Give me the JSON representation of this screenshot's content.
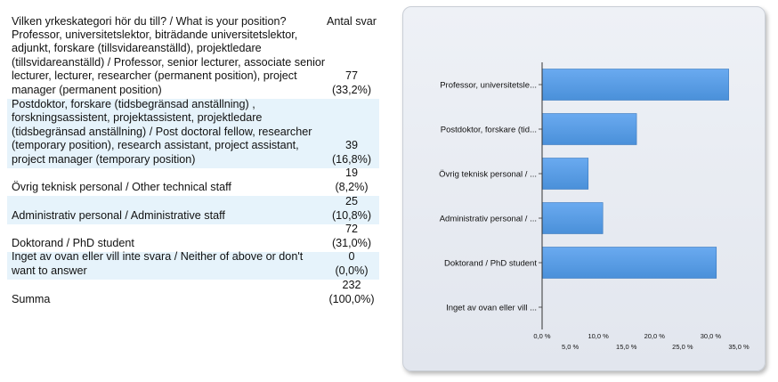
{
  "table": {
    "question": "Vilken yrkeskategori hör du till? / What is your position?",
    "count_header": "Antal svar",
    "rows": [
      {
        "label": "Professor, universitetslektor, biträdande universitetslektor, adjunkt, forskare (tillsvidareanställd), projektledare (tillsvidareanställd) / Professor, senior lecturer, associate senior lecturer, lecturer, researcher (permanent position), project manager (permanent position)",
        "count": "77",
        "percent": "(33,2%)"
      },
      {
        "label": "Postdoktor, forskare (tidsbegränsad anställning) , forskningsassistent, projektassistent, projektledare (tidsbegränsad anställning) / Post doctoral fellow, researcher (temporary position), research assistant, project assistant, project manager (temporary position)",
        "count": "39",
        "percent": "(16,8%)"
      },
      {
        "label": "Övrig teknisk personal / Other technical staff",
        "count": "19",
        "percent": "(8,2%)"
      },
      {
        "label": "Administrativ personal / Administrative staff",
        "count": "25",
        "percent": "(10,8%)"
      },
      {
        "label": "Doktorand / PhD student",
        "count": "72",
        "percent": "(31,0%)"
      },
      {
        "label": "Inget av ovan eller vill inte svara / Neither of above or don't want to answer",
        "count": "0",
        "percent": "(0,0%)"
      },
      {
        "label": "Summa",
        "count": "232",
        "percent": "(100,0%)"
      }
    ]
  },
  "chart_data": {
    "type": "bar",
    "orientation": "horizontal",
    "categories": [
      "Professor, universitetsle...",
      "Postdoktor, forskare (tid...",
      "Övrig teknisk personal / ...",
      "Administrativ personal / ...",
      "Doktorand / PhD student",
      "Inget av ovan eller vill ..."
    ],
    "values": [
      33.2,
      16.8,
      8.2,
      10.8,
      31.0,
      0.0
    ],
    "xlim": [
      0,
      35
    ],
    "tick_labels": [
      "0,0 %",
      "5,0 %",
      "10,0 %",
      "15,0 %",
      "20,0 %",
      "25,0 %",
      "30,0 %",
      "35,0 %"
    ],
    "bar_color": "#4a90d9",
    "grid": false
  }
}
